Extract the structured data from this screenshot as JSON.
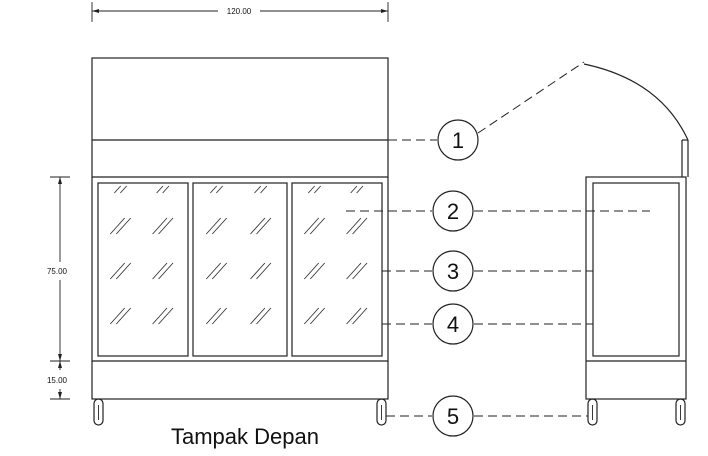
{
  "dimensions": {
    "width": "120.00",
    "glass_height": "75.00",
    "base_height": "15.00"
  },
  "callouts": [
    "1",
    "2",
    "3",
    "4",
    "5"
  ],
  "caption": "Tampak Depan"
}
